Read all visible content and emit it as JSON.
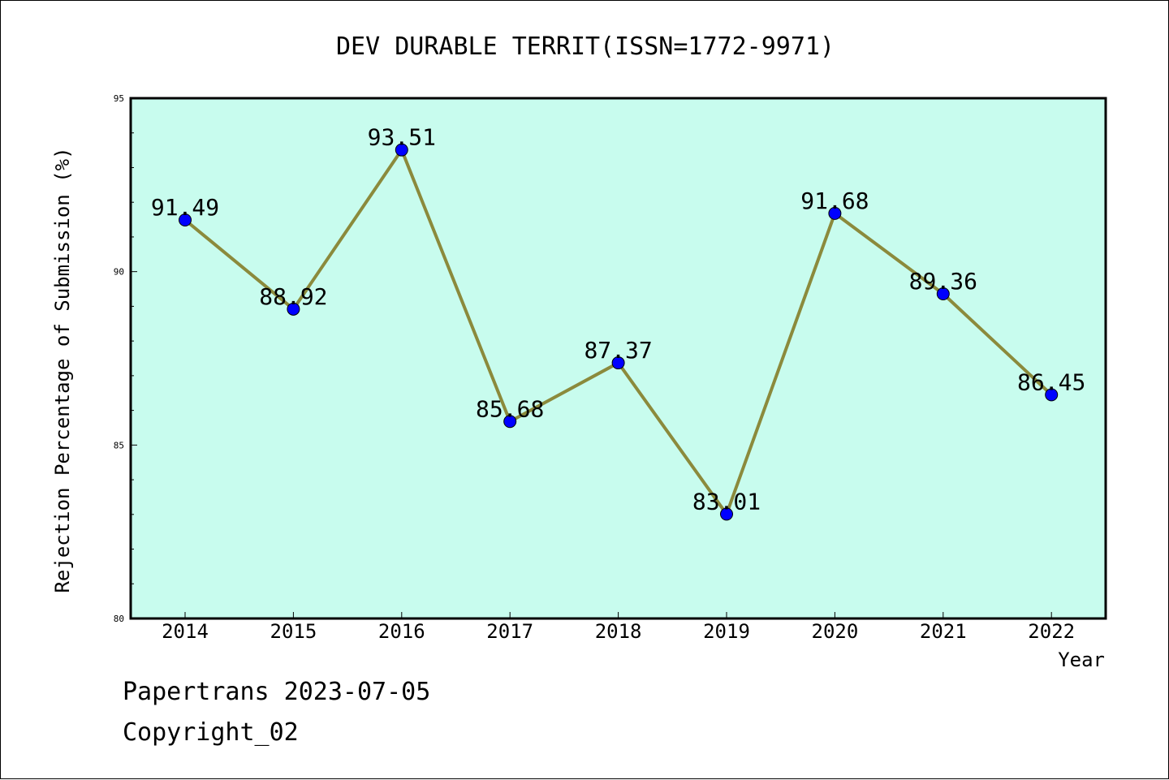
{
  "chart_data": {
    "type": "line",
    "title": "DEV DURABLE TERRIT(ISSN=1772-9971)",
    "xlabel": "Year",
    "ylabel": "Rejection Percentage of Submission (%)",
    "categories": [
      "2014",
      "2015",
      "2016",
      "2017",
      "2018",
      "2019",
      "2020",
      "2021",
      "2022"
    ],
    "values": [
      91.49,
      88.92,
      93.51,
      85.68,
      87.37,
      83.01,
      91.68,
      89.36,
      86.45
    ],
    "value_labels": [
      "91.49",
      "88.92",
      "93.51",
      "85.68",
      "87.37",
      "83.01",
      "91.68",
      "89.36",
      "86.45"
    ],
    "ylim": [
      80,
      95
    ],
    "yticks": [
      "80",
      "85",
      "90",
      "95"
    ],
    "grid": false,
    "colors": {
      "plot_background": "#c8fcee",
      "line": "#8b8a3c",
      "marker": "#0000ff"
    }
  },
  "footer": {
    "line1": "Papertrans 2023-07-05",
    "line2": "Copyright_02"
  }
}
